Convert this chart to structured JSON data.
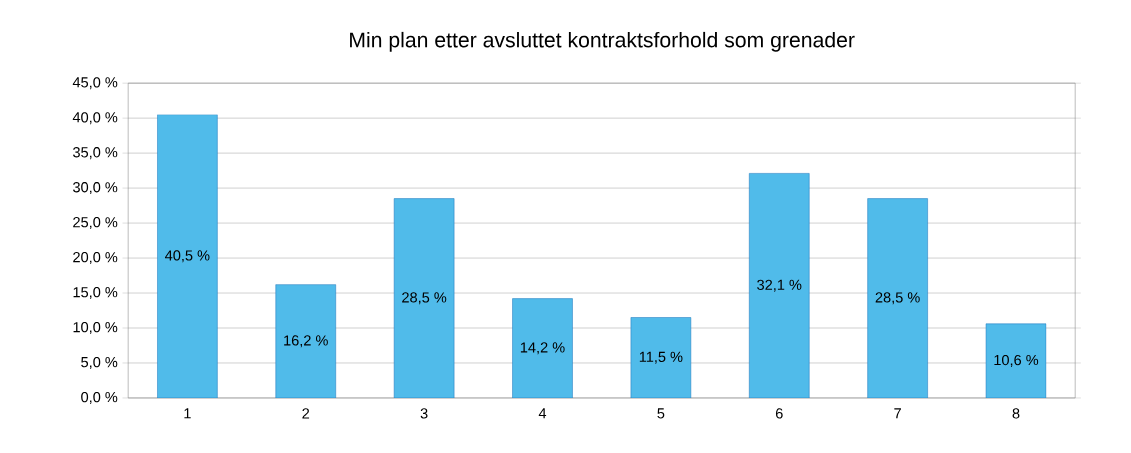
{
  "chart_data": {
    "type": "bar",
    "title": "Min plan etter avsluttet kontraktsforhold som grenader",
    "categories": [
      "1",
      "2",
      "3",
      "4",
      "5",
      "6",
      "7",
      "8"
    ],
    "values": [
      40.5,
      16.2,
      28.5,
      14.2,
      11.5,
      32.1,
      28.5,
      10.6
    ],
    "value_labels": [
      "40,5 %",
      "16,2 %",
      "28,5 %",
      "14,2 %",
      "11,5 %",
      "32,1 %",
      "28,5 %",
      "10,6 %"
    ],
    "color": "#50bbea",
    "ylim": [
      0,
      45
    ],
    "yticks": [
      {
        "value": 0,
        "label": "0,0 %"
      },
      {
        "value": 5,
        "label": "5,0 %"
      },
      {
        "value": 10,
        "label": "10,0 %"
      },
      {
        "value": 15,
        "label": "15,0 %"
      },
      {
        "value": 20,
        "label": "20,0 %"
      },
      {
        "value": 25,
        "label": "25,0 %"
      },
      {
        "value": 30,
        "label": "30,0 %"
      },
      {
        "value": 35,
        "label": "35,0 %"
      },
      {
        "value": 40,
        "label": "40,0 %"
      },
      {
        "value": 45,
        "label": "45,0 %"
      }
    ],
    "grid": "y"
  }
}
